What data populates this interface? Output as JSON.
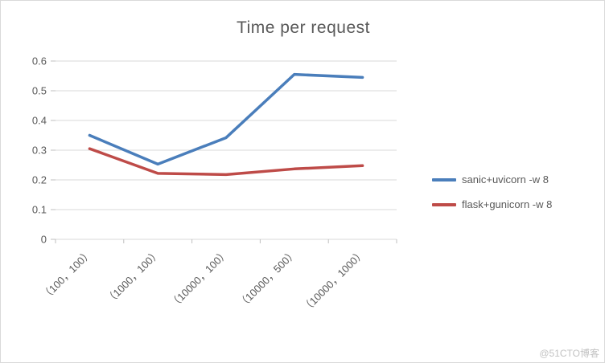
{
  "watermark": "@51CTO博客",
  "chart_data": {
    "type": "line",
    "title": "Time per request",
    "categories": [
      "（100，100）",
      "（1000，100）",
      "（10000，100）",
      "（10000，500）",
      "（10000，1000）"
    ],
    "x_label_rotation": -45,
    "series": [
      {
        "name": "sanic+uvicorn -w 8",
        "color": "#4a7ebb",
        "values": [
          0.35,
          0.253,
          0.342,
          0.555,
          0.545
        ]
      },
      {
        "name": "flask+gunicorn -w 8",
        "color": "#be4b48",
        "values": [
          0.305,
          0.222,
          0.218,
          0.237,
          0.248
        ]
      }
    ],
    "ylim": [
      0,
      0.6
    ],
    "yticks": [
      "0",
      "0.1",
      "0.2",
      "0.3",
      "0.4",
      "0.5",
      "0.6"
    ],
    "grid": true,
    "legend_position": "right",
    "colors": {
      "gridline": "#d9d9d9",
      "tick": "#bfbfbf",
      "axis_text": "#595959"
    }
  }
}
